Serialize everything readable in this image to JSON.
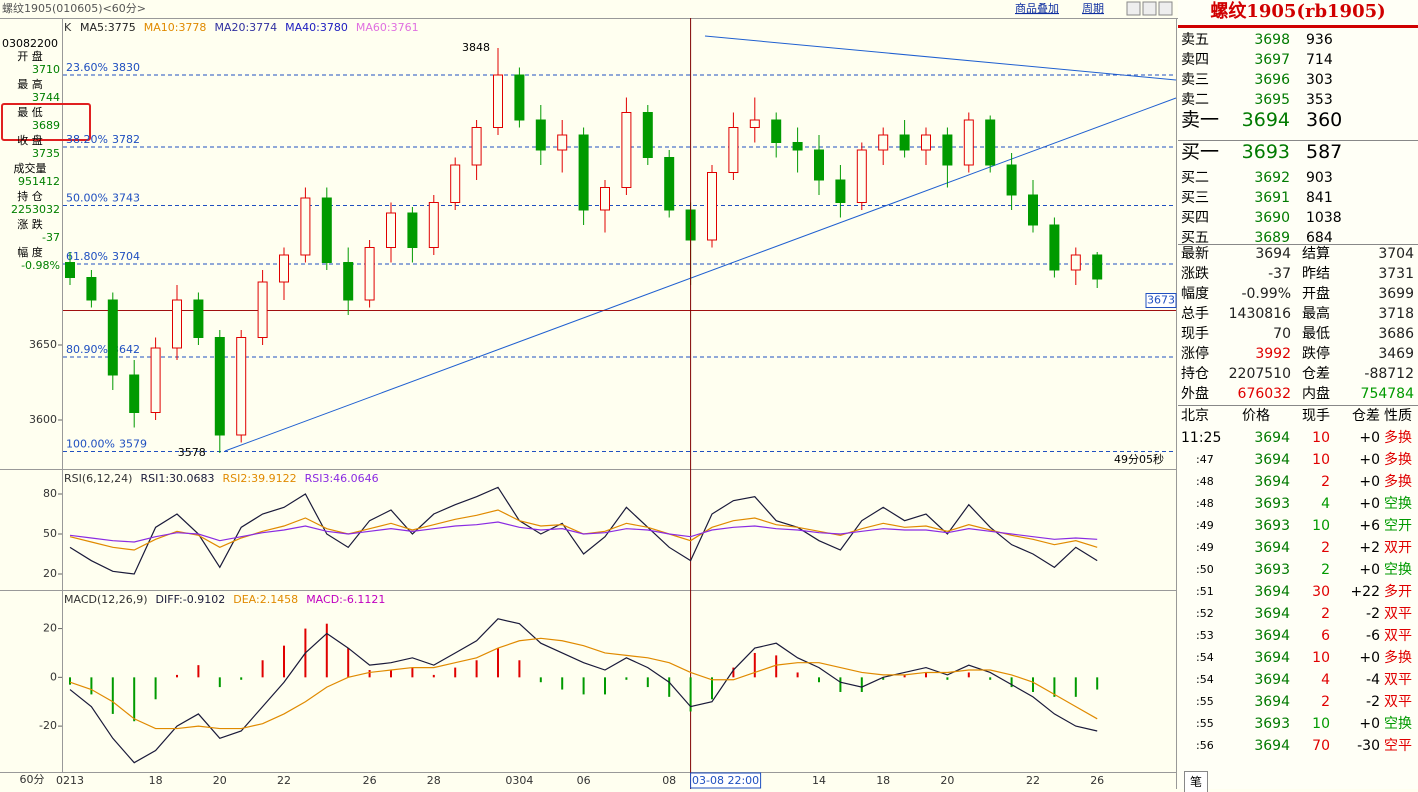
{
  "header": {
    "title": "螺纹1905(010605)<60分>",
    "buttons": [
      "商品叠加",
      "周期"
    ],
    "period": "60分"
  },
  "info": {
    "time": "03082200",
    "items": [
      {
        "label": "开 盘",
        "value": 3710
      },
      {
        "label": "最 高",
        "value": 3744
      },
      {
        "label": "最 低",
        "value": 3689
      },
      {
        "label": "收 盘",
        "value": 3735
      },
      {
        "label": "成交量",
        "value": 951412
      },
      {
        "label": "持 仓",
        "value": 2253032
      },
      {
        "label": "涨 跌",
        "value": -37
      },
      {
        "label": "幅 度",
        "value": "-0.98%"
      }
    ]
  },
  "chart_data": [
    {
      "type": "candlestick",
      "legend_label": "K",
      "ma_labels": [
        {
          "label": "MA5:3775",
          "color": "#222222"
        },
        {
          "label": "MA10:3778",
          "color": "#e08a00"
        },
        {
          "label": "MA20:3774",
          "color": "#3030a0"
        },
        {
          "label": "MA40:3780",
          "color": "#2020c0"
        },
        {
          "label": "MA60:3761",
          "color": "#e070e0"
        }
      ],
      "categories": [
        "0213",
        null,
        null,
        null,
        "18",
        null,
        null,
        "20",
        null,
        null,
        "22",
        null,
        null,
        null,
        "26",
        null,
        null,
        "28",
        null,
        null,
        null,
        "0304",
        null,
        null,
        "06",
        null,
        null,
        null,
        "08",
        "03-08 22:00",
        null,
        null,
        null,
        null,
        null,
        "14",
        null,
        null,
        "18",
        null,
        null,
        "20",
        null,
        null,
        null,
        "22",
        null,
        null,
        "26"
      ],
      "crosshair": "03-08 22:00",
      "open": [
        3705,
        3695,
        3680,
        3630,
        3605,
        3648,
        3680,
        3655,
        3590,
        3655,
        3692,
        3710,
        3748,
        3705,
        3680,
        3715,
        3738,
        3715,
        3745,
        3770,
        3795,
        3830,
        3800,
        3780,
        3790,
        3740,
        3755,
        3805,
        3775,
        3740,
        3720,
        3765,
        3795,
        3800,
        3785,
        3780,
        3760,
        3745,
        3780,
        3790,
        3780,
        3790,
        3770,
        3800,
        3770,
        3750,
        3730,
        3700,
        3710
      ],
      "high": [
        3712,
        3700,
        3685,
        3640,
        3655,
        3690,
        3685,
        3660,
        3660,
        3700,
        3715,
        3755,
        3755,
        3715,
        3720,
        3745,
        3742,
        3750,
        3775,
        3800,
        3848,
        3835,
        3810,
        3800,
        3795,
        3760,
        3815,
        3810,
        3780,
        3745,
        3770,
        3805,
        3815,
        3805,
        3795,
        3790,
        3770,
        3785,
        3795,
        3800,
        3795,
        3795,
        3805,
        3803,
        3778,
        3760,
        3735,
        3715,
        3712
      ],
      "low": [
        3690,
        3675,
        3620,
        3595,
        3600,
        3640,
        3650,
        3578,
        3585,
        3650,
        3680,
        3705,
        3700,
        3670,
        3675,
        3705,
        3705,
        3710,
        3740,
        3760,
        3790,
        3795,
        3770,
        3765,
        3730,
        3725,
        3750,
        3770,
        3735,
        3690,
        3715,
        3760,
        3785,
        3775,
        3765,
        3750,
        3735,
        3740,
        3770,
        3775,
        3770,
        3755,
        3765,
        3765,
        3740,
        3725,
        3695,
        3690,
        3688
      ],
      "close": [
        3695,
        3680,
        3630,
        3605,
        3648,
        3680,
        3655,
        3590,
        3655,
        3692,
        3710,
        3748,
        3705,
        3680,
        3715,
        3738,
        3715,
        3745,
        3770,
        3795,
        3830,
        3800,
        3780,
        3790,
        3740,
        3755,
        3805,
        3775,
        3740,
        3720,
        3765,
        3795,
        3800,
        3785,
        3780,
        3760,
        3745,
        3780,
        3790,
        3780,
        3790,
        3770,
        3800,
        3770,
        3750,
        3730,
        3700,
        3710,
        3694
      ],
      "up_color": "#e00000",
      "down_color": "#009a00",
      "ylim": [
        3568,
        3868
      ],
      "yticks": [
        3600,
        3650
      ],
      "fib_lines": [
        {
          "label": "23.60%",
          "value": 3830
        },
        {
          "label": "38.20%",
          "value": 3782
        },
        {
          "label": "50.00%",
          "value": 3743
        },
        {
          "label": "61.80%",
          "value": 3704
        },
        {
          "label": "80.90%",
          "value": 3642
        },
        {
          "label": "100.00%",
          "value": 3579
        }
      ],
      "price_line": 3673,
      "high_label": 3848,
      "low_label": 3578,
      "countdown": "49分05秒"
    },
    {
      "type": "line",
      "title": "RSI(6,12,24)",
      "ylim": [
        8,
        98
      ],
      "yticks": [
        20,
        50,
        80
      ],
      "series": [
        {
          "label": "RSI1:30.0683",
          "color": "#1a1a3a",
          "values": [
            40,
            30,
            22,
            20,
            55,
            65,
            50,
            25,
            55,
            65,
            70,
            80,
            50,
            40,
            60,
            68,
            50,
            65,
            72,
            78,
            85,
            60,
            50,
            58,
            35,
            48,
            70,
            55,
            40,
            30,
            65,
            75,
            78,
            60,
            55,
            45,
            38,
            60,
            70,
            60,
            65,
            50,
            72,
            55,
            42,
            35,
            25,
            40,
            30
          ]
        },
        {
          "label": "RSI2:39.9122",
          "color": "#e08a00",
          "values": [
            48,
            44,
            40,
            38,
            46,
            52,
            49,
            40,
            47,
            52,
            56,
            62,
            54,
            50,
            54,
            58,
            53,
            57,
            61,
            64,
            68,
            60,
            56,
            57,
            50,
            52,
            58,
            55,
            50,
            45,
            55,
            60,
            62,
            57,
            55,
            52,
            49,
            54,
            58,
            55,
            56,
            52,
            57,
            53,
            49,
            46,
            42,
            45,
            40
          ]
        },
        {
          "label": "RSI3:46.0646",
          "color": "#8a2be2",
          "values": [
            49,
            47,
            45,
            44,
            48,
            51,
            50,
            45,
            48,
            51,
            53,
            56,
            52,
            50,
            52,
            54,
            52,
            54,
            56,
            57,
            59,
            55,
            53,
            54,
            50,
            51,
            54,
            53,
            50,
            48,
            53,
            55,
            56,
            54,
            53,
            51,
            50,
            52,
            54,
            53,
            53,
            51,
            54,
            52,
            50,
            48,
            46,
            47,
            46
          ]
        }
      ]
    },
    {
      "type": "macd",
      "title": "MACD(12,26,9)",
      "ylim": [
        -38,
        35
      ],
      "yticks": [
        -20,
        0,
        20
      ],
      "series": [
        {
          "label": "DIFF:-0.9102",
          "color": "#1a1a3a",
          "values": [
            -5,
            -12,
            -25,
            -35,
            -30,
            -20,
            -15,
            -25,
            -22,
            -12,
            -2,
            10,
            18,
            12,
            5,
            6,
            8,
            5,
            10,
            15,
            24,
            22,
            14,
            10,
            6,
            3,
            8,
            4,
            -2,
            -12,
            -10,
            3,
            12,
            14,
            8,
            4,
            -2,
            -4,
            0,
            2,
            4,
            1,
            5,
            2,
            -3,
            -8,
            -15,
            -20,
            -22
          ]
        },
        {
          "label": "DEA:2.1458",
          "color": "#e08a00",
          "values": [
            -2,
            -5,
            -10,
            -17,
            -21,
            -21,
            -20,
            -21,
            -21,
            -19,
            -15,
            -10,
            -4,
            0,
            2,
            3,
            4,
            4,
            6,
            8,
            12,
            15,
            16,
            15,
            13,
            10,
            9,
            8,
            6,
            2,
            -1,
            -1,
            2,
            5,
            6,
            6,
            4,
            2,
            1,
            1,
            2,
            2,
            3,
            3,
            1,
            -2,
            -7,
            -12,
            -17
          ]
        }
      ],
      "bars": {
        "label": "MACD:-6.1121",
        "up_color": "#e00000",
        "down_color": "#009a00",
        "values": [
          -3,
          -7,
          -15,
          -18,
          -9,
          1,
          5,
          -4,
          -1,
          7,
          13,
          20,
          22,
          12,
          3,
          3,
          4,
          1,
          4,
          7,
          12,
          7,
          -2,
          -5,
          -7,
          -7,
          -1,
          -4,
          -8,
          -14,
          -9,
          4,
          10,
          9,
          2,
          -2,
          -6,
          -6,
          -1,
          1,
          2,
          -1,
          2,
          -1,
          -4,
          -6,
          -8,
          -8,
          -5
        ]
      }
    }
  ],
  "quote": {
    "title": "螺纹1905(rb1905)",
    "asks": [
      {
        "label": "卖五",
        "price": 3698,
        "vol": 936
      },
      {
        "label": "卖四",
        "price": 3697,
        "vol": 714
      },
      {
        "label": "卖三",
        "price": 3696,
        "vol": 303
      },
      {
        "label": "卖二",
        "price": 3695,
        "vol": 353
      },
      {
        "label": "卖一",
        "price": 3694,
        "vol": 360
      }
    ],
    "bids": [
      {
        "label": "买一",
        "price": 3693,
        "vol": 587
      },
      {
        "label": "买二",
        "price": 3692,
        "vol": 903
      },
      {
        "label": "买三",
        "price": 3691,
        "vol": 841
      },
      {
        "label": "买四",
        "price": 3690,
        "vol": 1038
      },
      {
        "label": "买五",
        "price": 3689,
        "vol": 684
      }
    ],
    "stats": [
      [
        {
          "label": "最新",
          "value": 3694
        },
        {
          "label": "结算",
          "value": 3704
        }
      ],
      [
        {
          "label": "涨跌",
          "value": -37
        },
        {
          "label": "昨结",
          "value": 3731
        }
      ],
      [
        {
          "label": "幅度",
          "value": "-0.99%"
        },
        {
          "label": "开盘",
          "value": 3699
        }
      ],
      [
        {
          "label": "总手",
          "value": 1430816
        },
        {
          "label": "最高",
          "value": 3718
        }
      ],
      [
        {
          "label": "现手",
          "value": 70
        },
        {
          "label": "最低",
          "value": 3686
        }
      ],
      [
        {
          "label": "涨停",
          "value": 3992,
          "color": "#e00000"
        },
        {
          "label": "跌停",
          "value": 3469
        }
      ],
      [
        {
          "label": "持仓",
          "value": 2207510
        },
        {
          "label": "仓差",
          "value": -88712
        }
      ],
      [
        {
          "label": "外盘",
          "value": 676032,
          "color": "#e00000"
        },
        {
          "label": "内盘",
          "value": 754784,
          "color": "#009a00"
        }
      ]
    ],
    "trade_header": [
      "北京",
      "价格",
      "现手",
      "仓差",
      "性质"
    ],
    "trades": [
      [
        "11:25",
        3694,
        10,
        "+0",
        "多换",
        "#e00000"
      ],
      [
        ":47",
        3694,
        10,
        "+0",
        "多换",
        "#e00000"
      ],
      [
        ":48",
        3694,
        2,
        "+0",
        "多换",
        "#e00000"
      ],
      [
        ":48",
        3693,
        4,
        "+0",
        "空换",
        "#009a00"
      ],
      [
        ":49",
        3693,
        10,
        "+6",
        "空开",
        "#009a00"
      ],
      [
        ":49",
        3694,
        2,
        "+2",
        "双开",
        "#e00000"
      ],
      [
        ":50",
        3693,
        2,
        "+0",
        "空换",
        "#009a00"
      ],
      [
        ":51",
        3694,
        30,
        "+22",
        "多开",
        "#e00000"
      ],
      [
        ":52",
        3694,
        2,
        "-2",
        "双平",
        "#e00000"
      ],
      [
        ":53",
        3694,
        6,
        "-6",
        "双平",
        "#e00000"
      ],
      [
        ":54",
        3694,
        10,
        "+0",
        "多换",
        "#e00000"
      ],
      [
        ":54",
        3694,
        4,
        "-4",
        "双平",
        "#e00000"
      ],
      [
        ":55",
        3694,
        2,
        "-2",
        "双平",
        "#e00000"
      ],
      [
        ":55",
        3693,
        10,
        "+0",
        "空换",
        "#009a00"
      ],
      [
        ":56",
        3694,
        70,
        "-30",
        "空平",
        "#e00000"
      ]
    ],
    "tab": "笔"
  }
}
